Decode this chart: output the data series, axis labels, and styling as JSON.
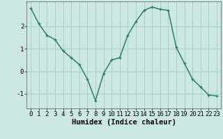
{
  "x": [
    0,
    1,
    2,
    3,
    4,
    5,
    6,
    7,
    8,
    9,
    10,
    11,
    12,
    13,
    14,
    15,
    16,
    17,
    18,
    19,
    20,
    21,
    22,
    23
  ],
  "y": [
    2.8,
    2.1,
    1.6,
    1.4,
    0.9,
    0.6,
    0.3,
    -0.35,
    -1.3,
    -0.1,
    0.5,
    0.6,
    1.6,
    2.2,
    2.7,
    2.85,
    2.75,
    2.7,
    1.05,
    0.35,
    -0.35,
    -0.7,
    -1.05,
    -1.1
  ],
  "line_color": "#2e7d6e",
  "marker": "+",
  "marker_size": 3.5,
  "marker_linewidth": 1.0,
  "background_color": "#cce8e4",
  "grid_color": "#aad0cc",
  "xlabel": "Humidex (Indice chaleur)",
  "xlim": [
    -0.5,
    23.5
  ],
  "ylim": [
    -1.65,
    3.1
  ],
  "yticks": [
    -1,
    0,
    1,
    2
  ],
  "xticks": [
    0,
    1,
    2,
    3,
    4,
    5,
    6,
    7,
    8,
    9,
    10,
    11,
    12,
    13,
    14,
    15,
    16,
    17,
    18,
    19,
    20,
    21,
    22,
    23
  ],
  "tick_fontsize": 6.5,
  "xlabel_fontsize": 7.5,
  "linewidth": 1.1
}
